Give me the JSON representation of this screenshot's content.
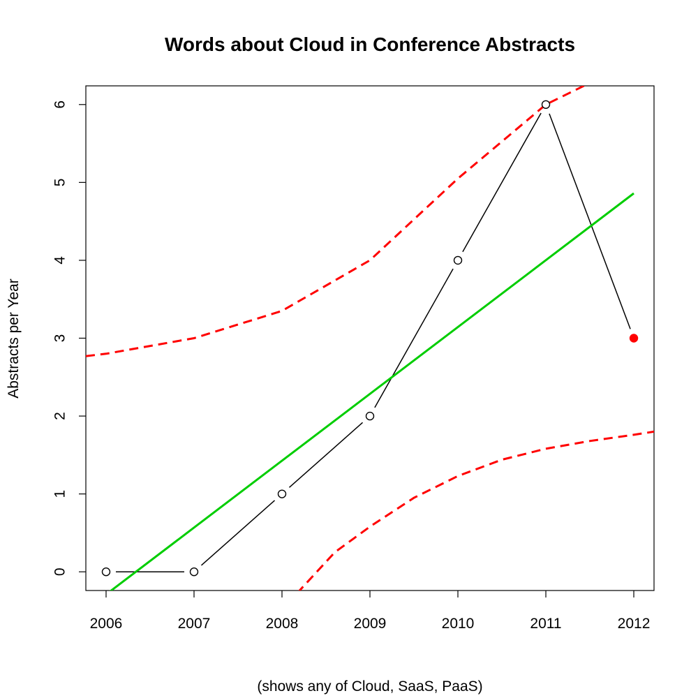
{
  "chart_data": {
    "type": "line",
    "title": "Words about Cloud in Conference Abstracts",
    "xlabel": "(shows any of Cloud, SaaS, PaaS)",
    "ylabel": "Abstracts per Year",
    "x_ticks": [
      "2006",
      "2007",
      "2008",
      "2009",
      "2010",
      "2011",
      "2012"
    ],
    "y_ticks": [
      "0",
      "1",
      "2",
      "3",
      "4",
      "5",
      "6"
    ],
    "xlim": [
      2005.77,
      2012.23
    ],
    "ylim": [
      -0.24,
      6.24
    ],
    "grid": false,
    "series": [
      {
        "role": "observed",
        "x": [
          2006,
          2007,
          2008,
          2009,
          2010,
          2011,
          2012
        ],
        "y": [
          0,
          0,
          1,
          2,
          4,
          6,
          3
        ],
        "color": "#000000",
        "marker": "open-circle",
        "highlight_last": true,
        "highlight_color": "#ff0000"
      },
      {
        "role": "linear-fit",
        "x": [
          2006,
          2012
        ],
        "y": [
          -0.29,
          4.86
        ],
        "color": "#00cd00",
        "style": "solid"
      },
      {
        "role": "upper-prediction-band",
        "x": [
          2005.77,
          2006,
          2007,
          2008,
          2009,
          2010,
          2011,
          2011.9
        ],
        "y": [
          2.77,
          2.8,
          3.0,
          3.35,
          4.0,
          5.05,
          6.0,
          6.5
        ],
        "color": "#ff0000",
        "style": "dashed"
      },
      {
        "role": "lower-prediction-band",
        "x": [
          2008.0,
          2008.2,
          2008.6,
          2009,
          2009.5,
          2010,
          2010.5,
          2011,
          2011.5,
          2012,
          2012.23
        ],
        "y": [
          -0.6,
          -0.24,
          0.25,
          0.58,
          0.95,
          1.23,
          1.44,
          1.58,
          1.68,
          1.76,
          1.8
        ],
        "color": "#ff0000",
        "style": "dashed"
      }
    ]
  }
}
